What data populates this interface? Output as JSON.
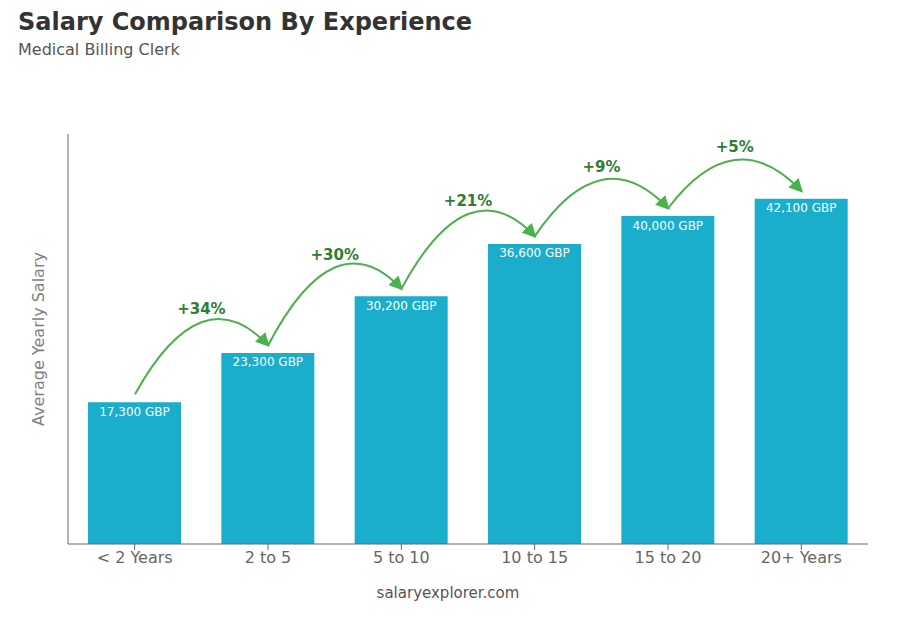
{
  "chart_data": {
    "type": "bar",
    "title": "Salary Comparison By Experience",
    "subtitle": "Medical Billing Clerk",
    "categories": [
      "< 2 Years",
      "2 to 5",
      "5 to 10",
      "10 to 15",
      "15 to 20",
      "20+ Years"
    ],
    "values": [
      17300,
      23300,
      30200,
      36600,
      40000,
      42100
    ],
    "value_labels": [
      "17,300 GBP",
      "23,300 GBP",
      "30,200 GBP",
      "36,600 GBP",
      "40,000 GBP",
      "42,100 GBP"
    ],
    "data_labels": true,
    "annotations": [
      "+34%",
      "+30%",
      "+21%",
      "+9%",
      "+5%"
    ],
    "ylabel": "Average Yearly Salary",
    "footer": "salaryexplorer.com",
    "ylim": [
      0,
      50000
    ],
    "tick_labels": "x",
    "color": "#1aaecc"
  }
}
